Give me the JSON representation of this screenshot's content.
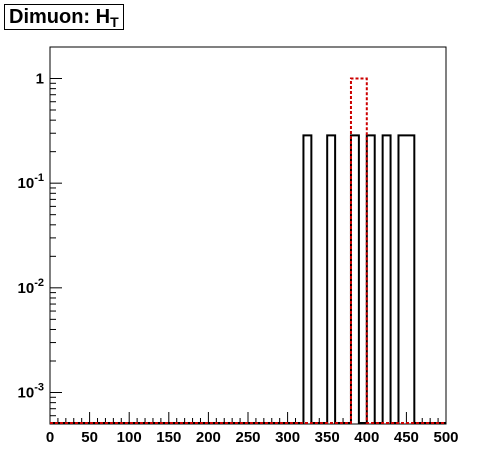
{
  "title": {
    "main": "Dimuon: H",
    "sub": "T"
  },
  "chart_data": {
    "type": "histogram",
    "title": "Dimuon: H_T",
    "xlabel": "",
    "ylabel": "",
    "xlim": [
      0,
      500
    ],
    "ylim": [
      0.0005,
      2
    ],
    "yscale": "log",
    "grid": false,
    "x_ticks": [
      0,
      50,
      100,
      150,
      200,
      250,
      300,
      350,
      400,
      450,
      500
    ],
    "y_ticks": [
      {
        "value": 0.001,
        "base": "10",
        "exp": "-3"
      },
      {
        "value": 0.01,
        "base": "10",
        "exp": "-2"
      },
      {
        "value": 0.1,
        "base": "10",
        "exp": "-1"
      },
      {
        "value": 1,
        "base": "1",
        "exp": ""
      }
    ],
    "series": [
      {
        "style": "solid",
        "color": "#000000",
        "bins": [
          {
            "x0": 320,
            "x1": 330,
            "y": 0.286
          },
          {
            "x0": 350,
            "x1": 360,
            "y": 0.286
          },
          {
            "x0": 380,
            "x1": 390,
            "y": 0.286
          },
          {
            "x0": 400,
            "x1": 410,
            "y": 0.286
          },
          {
            "x0": 420,
            "x1": 430,
            "y": 0.286
          },
          {
            "x0": 440,
            "x1": 460,
            "y": 0.286
          }
        ]
      },
      {
        "style": "dashed",
        "color": "#cc0000",
        "bins": [
          {
            "x0": 380,
            "x1": 400,
            "y": 1.0
          }
        ]
      }
    ]
  }
}
